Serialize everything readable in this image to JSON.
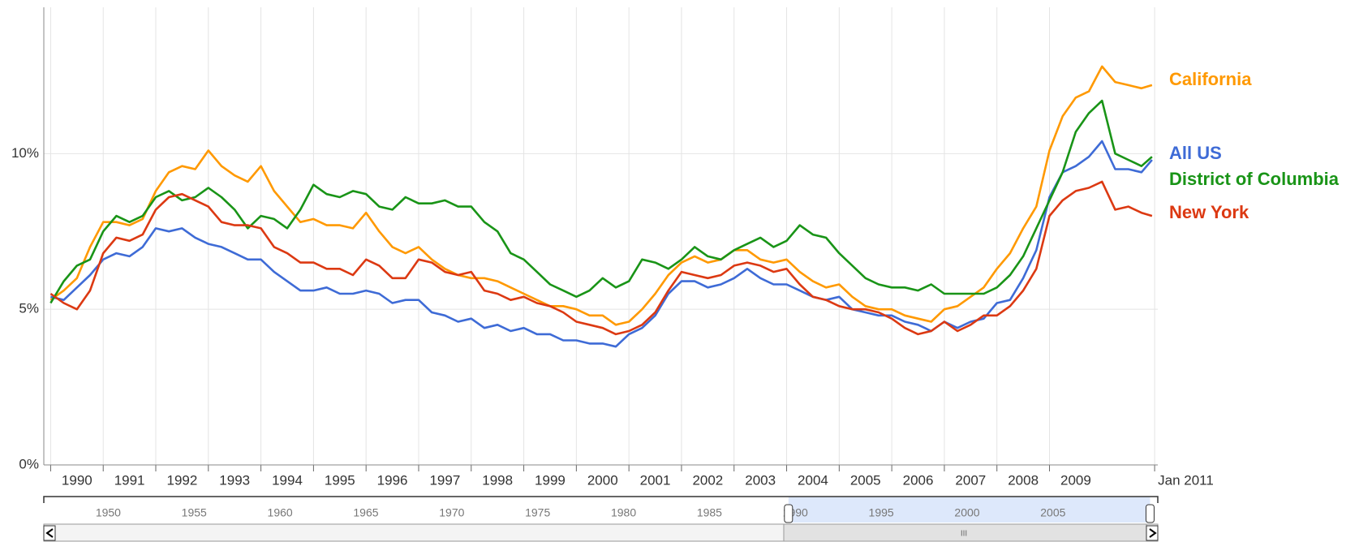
{
  "chart_data": {
    "type": "line",
    "x": [
      1990,
      1990.25,
      1990.5,
      1990.75,
      1991,
      1991.25,
      1991.5,
      1991.75,
      1992,
      1992.25,
      1992.5,
      1992.75,
      1993,
      1993.25,
      1993.5,
      1993.75,
      1994,
      1994.25,
      1994.5,
      1994.75,
      1995,
      1995.25,
      1995.5,
      1995.75,
      1996,
      1996.25,
      1996.5,
      1996.75,
      1997,
      1997.25,
      1997.5,
      1997.75,
      1998,
      1998.25,
      1998.5,
      1998.75,
      1999,
      1999.25,
      1999.5,
      1999.75,
      2000,
      2000.25,
      2000.5,
      2000.75,
      2001,
      2001.25,
      2001.5,
      2001.75,
      2002,
      2002.25,
      2002.5,
      2002.75,
      2003,
      2003.25,
      2003.5,
      2003.75,
      2004,
      2004.25,
      2004.5,
      2004.75,
      2005,
      2005.25,
      2005.5,
      2005.75,
      2006,
      2006.25,
      2006.5,
      2006.75,
      2007,
      2007.25,
      2007.5,
      2007.75,
      2008,
      2008.25,
      2008.5,
      2008.75,
      2009,
      2009.25,
      2009.5,
      2009.75,
      2010,
      2010.25,
      2010.5,
      2010.75,
      2010.95
    ],
    "series": [
      {
        "name": "California",
        "color": "#ff9900",
        "values": [
          5.3,
          5.6,
          6.0,
          7.0,
          7.8,
          7.8,
          7.7,
          7.9,
          8.8,
          9.4,
          9.6,
          9.5,
          10.1,
          9.6,
          9.3,
          9.1,
          9.6,
          8.8,
          8.3,
          7.8,
          7.9,
          7.7,
          7.7,
          7.6,
          8.1,
          7.5,
          7.0,
          6.8,
          7.0,
          6.6,
          6.3,
          6.1,
          6.0,
          6.0,
          5.9,
          5.7,
          5.5,
          5.3,
          5.1,
          5.1,
          5.0,
          4.8,
          4.8,
          4.5,
          4.6,
          5.0,
          5.5,
          6.1,
          6.5,
          6.7,
          6.5,
          6.6,
          6.9,
          6.9,
          6.6,
          6.5,
          6.6,
          6.2,
          5.9,
          5.7,
          5.8,
          5.4,
          5.1,
          5.0,
          5.0,
          4.8,
          4.7,
          4.6,
          5.0,
          5.1,
          5.4,
          5.7,
          6.3,
          6.8,
          7.6,
          8.3,
          10.1,
          11.2,
          11.8,
          12.0,
          12.8,
          12.3,
          12.2,
          12.1,
          12.2
        ]
      },
      {
        "name": "All US",
        "color": "#3e6bd6",
        "values": [
          5.4,
          5.3,
          5.7,
          6.1,
          6.6,
          6.8,
          6.7,
          7.0,
          7.6,
          7.5,
          7.6,
          7.3,
          7.1,
          7.0,
          6.8,
          6.6,
          6.6,
          6.2,
          5.9,
          5.6,
          5.6,
          5.7,
          5.5,
          5.5,
          5.6,
          5.5,
          5.2,
          5.3,
          5.3,
          4.9,
          4.8,
          4.6,
          4.7,
          4.4,
          4.5,
          4.3,
          4.4,
          4.2,
          4.2,
          4.0,
          4.0,
          3.9,
          3.9,
          3.8,
          4.2,
          4.4,
          4.8,
          5.5,
          5.9,
          5.9,
          5.7,
          5.8,
          6.0,
          6.3,
          6.0,
          5.8,
          5.8,
          5.6,
          5.4,
          5.3,
          5.4,
          5.0,
          4.9,
          4.8,
          4.8,
          4.6,
          4.5,
          4.3,
          4.6,
          4.4,
          4.6,
          4.7,
          5.2,
          5.3,
          6.0,
          6.9,
          8.6,
          9.4,
          9.6,
          9.9,
          10.4,
          9.5,
          9.5,
          9.4,
          9.8
        ]
      },
      {
        "name": "District of Columbia",
        "color": "#199417",
        "values": [
          5.2,
          5.9,
          6.4,
          6.6,
          7.5,
          8.0,
          7.8,
          8.0,
          8.6,
          8.8,
          8.5,
          8.6,
          8.9,
          8.6,
          8.2,
          7.6,
          8.0,
          7.9,
          7.6,
          8.2,
          9.0,
          8.7,
          8.6,
          8.8,
          8.7,
          8.3,
          8.2,
          8.6,
          8.4,
          8.4,
          8.5,
          8.3,
          8.3,
          7.8,
          7.5,
          6.8,
          6.6,
          6.2,
          5.8,
          5.6,
          5.4,
          5.6,
          6.0,
          5.7,
          5.9,
          6.6,
          6.5,
          6.3,
          6.6,
          7.0,
          6.7,
          6.6,
          6.9,
          7.1,
          7.3,
          7.0,
          7.2,
          7.7,
          7.4,
          7.3,
          6.8,
          6.4,
          6.0,
          5.8,
          5.7,
          5.7,
          5.6,
          5.8,
          5.5,
          5.5,
          5.5,
          5.5,
          5.7,
          6.1,
          6.7,
          7.6,
          8.5,
          9.4,
          10.7,
          11.3,
          11.7,
          10.0,
          9.8,
          9.6,
          9.9
        ]
      },
      {
        "name": "New York",
        "color": "#dc3912",
        "values": [
          5.5,
          5.2,
          5.0,
          5.6,
          6.8,
          7.3,
          7.2,
          7.4,
          8.2,
          8.6,
          8.7,
          8.5,
          8.3,
          7.8,
          7.7,
          7.7,
          7.6,
          7.0,
          6.8,
          6.5,
          6.5,
          6.3,
          6.3,
          6.1,
          6.6,
          6.4,
          6.0,
          6.0,
          6.6,
          6.5,
          6.2,
          6.1,
          6.2,
          5.6,
          5.5,
          5.3,
          5.4,
          5.2,
          5.1,
          4.9,
          4.6,
          4.5,
          4.4,
          4.2,
          4.3,
          4.5,
          4.9,
          5.6,
          6.2,
          6.1,
          6.0,
          6.1,
          6.4,
          6.5,
          6.4,
          6.2,
          6.3,
          5.8,
          5.4,
          5.3,
          5.1,
          5.0,
          5.0,
          4.9,
          4.7,
          4.4,
          4.2,
          4.3,
          4.6,
          4.3,
          4.5,
          4.8,
          4.8,
          5.1,
          5.6,
          6.3,
          8.0,
          8.5,
          8.8,
          8.9,
          9.1,
          8.2,
          8.3,
          8.1,
          8.0
        ]
      }
    ],
    "xlim": [
      1989.87,
      2011.06
    ],
    "xticks": [
      1990,
      1991,
      1992,
      1993,
      1994,
      1995,
      1996,
      1997,
      1998,
      1999,
      2000,
      2001,
      2002,
      2003,
      2004,
      2005,
      2006,
      2007,
      2008,
      2009,
      {
        "value": 2011,
        "label": "Jan 2011"
      }
    ],
    "ylim": [
      0,
      14.7
    ],
    "yticks": [
      {
        "value": 0,
        "label": "0%"
      },
      {
        "value": 5,
        "label": "5%"
      },
      {
        "value": 10,
        "label": "10%"
      }
    ],
    "grid": true,
    "legend": "right",
    "overview": {
      "xlim": [
        1946.25,
        2011.1
      ],
      "xticks": [
        1950,
        1955,
        1960,
        1965,
        1970,
        1975,
        1980,
        1985,
        1990,
        1995,
        2000,
        2005
      ],
      "selection": [
        1989.6,
        2010.65
      ]
    }
  }
}
